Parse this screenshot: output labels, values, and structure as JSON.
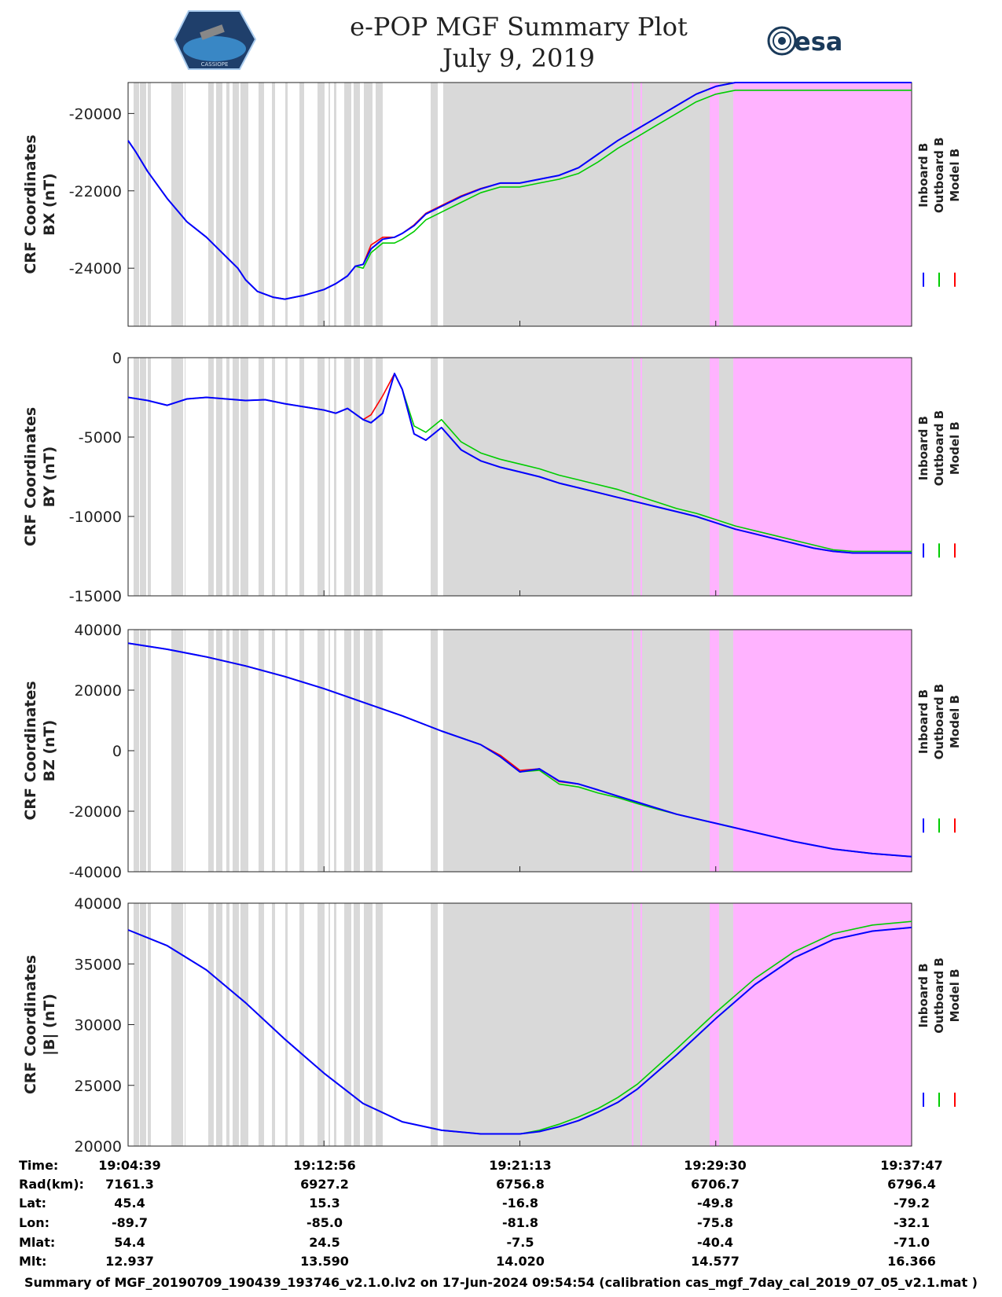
{
  "header": {
    "title_line1": "e-POP MGF Summary Plot",
    "title_line2": "July 9, 2019",
    "left_logo_text": "CASSIOPE",
    "right_logo_text": "esa"
  },
  "footer_text": "Summary of MGF_20190709_190439_193746_v2.1.0.lv2 on 17-Jun-2024 09:54:54 (calibration cas_mgf_7day_cal_2019_07_05_v2.1.mat )",
  "legend": {
    "labels": [
      "Inboard B",
      "Outboard B",
      "Model B"
    ],
    "colors": [
      "#0000ff",
      "#00cc00",
      "#ff0000"
    ]
  },
  "colors": {
    "gray_band": "#d9d9d9",
    "pink_band": "#ffb3ff",
    "inboard": "#0000ff",
    "outboard": "#00cc00",
    "model": "#ff0000"
  },
  "ephemeris": {
    "row_labels": [
      "Time:",
      "Rad(km):",
      "Lat:",
      "Lon:",
      "Mlat:",
      "Mlt:"
    ],
    "columns": [
      [
        "19:04:39",
        "7161.3",
        "45.4",
        "-89.7",
        "54.4",
        "12.937"
      ],
      [
        "19:12:56",
        "6927.2",
        "15.3",
        "-85.0",
        "24.5",
        "13.590"
      ],
      [
        "19:21:13",
        "6756.8",
        "-16.8",
        "-81.8",
        "-7.5",
        "14.020"
      ],
      [
        "19:29:30",
        "6706.7",
        "-49.8",
        "-75.8",
        "-40.4",
        "14.577"
      ],
      [
        "19:37:47",
        "6796.4",
        "-79.2",
        "-32.1",
        "-71.0",
        "16.366"
      ]
    ]
  },
  "chart_data": [
    {
      "type": "line",
      "ylabel_line1": "CRF Coordinates",
      "ylabel_line2": "BX (nT)",
      "ylim": [
        -25500,
        -19200
      ],
      "yticks": [
        -24000,
        -22000,
        -20000
      ],
      "ytick_labels": [
        "-24000",
        "-22000",
        "-20000"
      ],
      "x": [
        0,
        0.2,
        0.5,
        1,
        1.5,
        2,
        2.5,
        2.8,
        3.0,
        3.3,
        3.7,
        4,
        4.5,
        5,
        5.3,
        5.6,
        5.8,
        6.0,
        6.2,
        6.5,
        6.8,
        7.0,
        7.3,
        7.6,
        8.0,
        8.5,
        9,
        9.5,
        10,
        10.5,
        11,
        11.5,
        12,
        12.5,
        13,
        13.5,
        14,
        14.5,
        15,
        15.5,
        16,
        16.5,
        17,
        17.5,
        18,
        18.5,
        19,
        19.5,
        20
      ],
      "inboard": [
        -20700,
        -21000,
        -21500,
        -22200,
        -22800,
        -23200,
        -23700,
        -24000,
        -24300,
        -24600,
        -24750,
        -24800,
        -24700,
        -24550,
        -24400,
        -24200,
        -23950,
        -23900,
        -23500,
        -23250,
        -23200,
        -23100,
        -22900,
        -22600,
        -22400,
        -22150,
        -21950,
        -21800,
        -21800,
        -21700,
        -21600,
        -21400,
        -21050,
        -20700,
        -20400,
        -20100,
        -19800,
        -19500,
        -19300,
        -19200,
        -19200,
        -19200,
        -19200,
        -19200,
        -19200,
        -19200,
        -19200,
        -19200,
        -19200
      ],
      "outboard": [
        -20700,
        -21000,
        -21500,
        -22200,
        -22800,
        -23200,
        -23700,
        -24000,
        -24300,
        -24600,
        -24750,
        -24800,
        -24700,
        -24550,
        -24400,
        -24200,
        -23950,
        -24000,
        -23600,
        -23350,
        -23350,
        -23250,
        -23050,
        -22750,
        -22550,
        -22300,
        -22050,
        -21900,
        -21900,
        -21800,
        -21700,
        -21550,
        -21250,
        -20900,
        -20600,
        -20300,
        -20000,
        -19700,
        -19500,
        -19400,
        -19400,
        -19400,
        -19400,
        -19400,
        -19400,
        -19400,
        -19400,
        -19400,
        -19400
      ],
      "model": [
        -20700,
        -21000,
        -21500,
        -22200,
        -22800,
        -23200,
        -23700,
        -24000,
        -24300,
        -24600,
        -24750,
        -24800,
        -24700,
        -24550,
        -24400,
        -24200,
        -23950,
        -23900,
        -23400,
        -23200,
        -23200,
        -23100,
        -22880,
        -22580,
        -22380,
        -22130,
        -21940,
        -21800,
        -21800,
        -21700,
        -21600,
        -21400,
        -21050,
        -20700,
        -20400,
        -20100,
        -19800,
        -19500,
        -19300,
        -19200,
        -19200,
        -19200,
        -19200,
        -19200,
        -19200,
        -19200,
        -19200,
        -19200,
        -19200
      ]
    },
    {
      "type": "line",
      "ylabel_line1": "CRF Coordinates",
      "ylabel_line2": "BY (nT)",
      "ylim": [
        -15000,
        0
      ],
      "yticks": [
        -15000,
        -10000,
        -5000,
        0
      ],
      "ytick_labels": [
        "-15000",
        "-10000",
        "-5000",
        "0"
      ],
      "x": [
        0,
        0.5,
        1,
        1.5,
        2,
        2.5,
        3,
        3.5,
        4,
        4.5,
        5,
        5.3,
        5.6,
        6.0,
        6.2,
        6.5,
        6.8,
        7.0,
        7.3,
        7.6,
        8.0,
        8.5,
        9,
        9.5,
        10,
        10.5,
        11,
        11.5,
        12,
        12.5,
        13,
        13.5,
        14,
        14.5,
        15,
        15.5,
        16,
        16.5,
        17,
        17.5,
        18,
        18.5,
        19,
        19.5,
        20
      ],
      "inboard": [
        -2500,
        -2700,
        -3000,
        -2600,
        -2500,
        -2600,
        -2700,
        -2650,
        -2900,
        -3100,
        -3300,
        -3500,
        -3200,
        -3900,
        -4100,
        -3500,
        -1000,
        -2000,
        -4800,
        -5200,
        -4400,
        -5800,
        -6500,
        -6900,
        -7200,
        -7500,
        -7900,
        -8200,
        -8500,
        -8800,
        -9100,
        -9400,
        -9700,
        -10000,
        -10400,
        -10800,
        -11100,
        -11400,
        -11700,
        -12000,
        -12200,
        -12300,
        -12300,
        -12300,
        -12300
      ],
      "outboard": [
        -2500,
        -2700,
        -3000,
        -2600,
        -2500,
        -2600,
        -2700,
        -2650,
        -2900,
        -3100,
        -3300,
        -3500,
        -3200,
        -3900,
        -4100,
        -3500,
        -1000,
        -2000,
        -4300,
        -4700,
        -3900,
        -5300,
        -6000,
        -6400,
        -6700,
        -7000,
        -7400,
        -7700,
        -8000,
        -8300,
        -8700,
        -9100,
        -9500,
        -9800,
        -10200,
        -10600,
        -10900,
        -11200,
        -11500,
        -11800,
        -12100,
        -12200,
        -12200,
        -12200,
        -12200
      ],
      "model": [
        -2500,
        -2700,
        -3000,
        -2600,
        -2500,
        -2600,
        -2700,
        -2650,
        -2900,
        -3100,
        -3300,
        -3500,
        -3200,
        -3900,
        -3600,
        -2400,
        -1000,
        -2000,
        -4800,
        -5200,
        -4400,
        -5800,
        -6500,
        -6900,
        -7200,
        -7500,
        -7900,
        -8200,
        -8500,
        -8800,
        -9100,
        -9400,
        -9700,
        -10000,
        -10400,
        -10800,
        -11100,
        -11400,
        -11700,
        -12000,
        -12200,
        -12300,
        -12300,
        -12300,
        -12300
      ]
    },
    {
      "type": "line",
      "ylabel_line1": "CRF Coordinates",
      "ylabel_line2": "BZ (nT)",
      "ylim": [
        -40000,
        40000
      ],
      "yticks": [
        -40000,
        -20000,
        0,
        20000,
        40000
      ],
      "ytick_labels": [
        "-40000",
        "-20000",
        "0",
        "20000",
        "40000"
      ],
      "x": [
        0,
        1,
        2,
        3,
        4,
        5,
        6,
        7,
        8,
        9,
        9.5,
        10,
        10.5,
        11,
        11.5,
        12,
        12.5,
        13,
        13.5,
        14,
        14.5,
        15,
        16,
        17,
        18,
        19,
        20
      ],
      "inboard": [
        35500,
        33500,
        31000,
        28000,
        24500,
        20500,
        16000,
        11500,
        6500,
        2000,
        -2000,
        -7000,
        -6000,
        -10000,
        -11000,
        -13000,
        -15000,
        -17000,
        -19000,
        -21000,
        -22500,
        -24000,
        -27000,
        -30000,
        -32500,
        -34000,
        -35000
      ],
      "outboard": [
        35500,
        33500,
        31000,
        28000,
        24500,
        20500,
        16000,
        11500,
        6500,
        2000,
        -2000,
        -7000,
        -6500,
        -11000,
        -12000,
        -14000,
        -15500,
        -17500,
        -19300,
        -21000,
        -22500,
        -24000,
        -27000,
        -30000,
        -32500,
        -34000,
        -35000
      ],
      "model": [
        35500,
        33500,
        31000,
        28000,
        24500,
        20500,
        16000,
        11500,
        6500,
        2000,
        -1500,
        -6500,
        -6000,
        -10200,
        -11000,
        -13000,
        -15000,
        -17000,
        -19000,
        -21000,
        -22500,
        -24000,
        -27000,
        -30000,
        -32500,
        -34000,
        -35000
      ]
    },
    {
      "type": "line",
      "ylabel_line1": "CRF Coordinates",
      "ylabel_line2": "|B| (nT)",
      "ylim": [
        20000,
        40000
      ],
      "yticks": [
        20000,
        25000,
        30000,
        35000,
        40000
      ],
      "ytick_labels": [
        "20000",
        "25000",
        "30000",
        "35000",
        "40000"
      ],
      "x": [
        0,
        1,
        2,
        3,
        4,
        5,
        6,
        7,
        8,
        9,
        9.5,
        10,
        10.5,
        11,
        11.5,
        12,
        12.5,
        13,
        14,
        15,
        16,
        17,
        18,
        19,
        20
      ],
      "inboard": [
        37800,
        36500,
        34500,
        31800,
        28800,
        26000,
        23500,
        22000,
        21300,
        21000,
        21000,
        21000,
        21200,
        21600,
        22100,
        22800,
        23600,
        24700,
        27500,
        30500,
        33300,
        35500,
        37000,
        37700,
        38000
      ],
      "outboard": [
        37800,
        36500,
        34500,
        31800,
        28800,
        26000,
        23500,
        22000,
        21300,
        21000,
        21000,
        21000,
        21300,
        21800,
        22400,
        23100,
        24000,
        25100,
        28000,
        31000,
        33800,
        36000,
        37500,
        38200,
        38500
      ],
      "model": [
        37800,
        36500,
        34500,
        31800,
        28800,
        26000,
        23500,
        22000,
        21300,
        21000,
        21000,
        21000,
        21200,
        21600,
        22100,
        22800,
        23600,
        24700,
        27500,
        30500,
        33300,
        35500,
        37000,
        37700,
        38000
      ]
    }
  ]
}
